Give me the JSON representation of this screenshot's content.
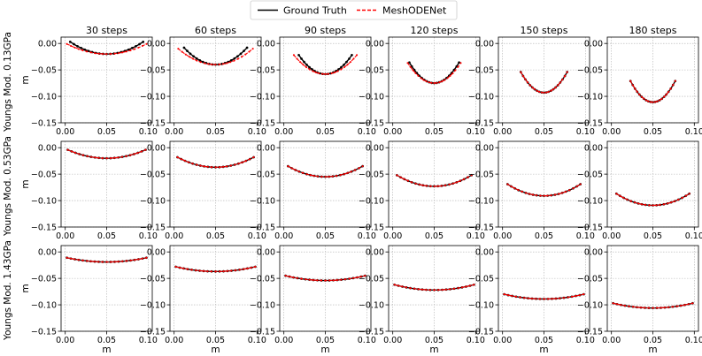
{
  "legend": {
    "items": [
      {
        "label": "Ground Truth",
        "color": "#000000",
        "dash": "solid"
      },
      {
        "label": "MeshODENet",
        "color": "#ff0000",
        "dash": "dashed"
      }
    ],
    "position": "top-center"
  },
  "chart_data": {
    "type": "line",
    "layout": "3x6 small multiples",
    "columns": [
      "30 steps",
      "60 steps",
      "90 steps",
      "120 steps",
      "150 steps",
      "180 steps"
    ],
    "rows": [
      "Youngs Mod. 0.13GPa",
      "Youngs Mod. 0.53GPa",
      "Youngs Mod. 1.43GPa"
    ],
    "xlabel": "m",
    "ylabel": "m",
    "xlim": [
      -0.005,
      0.105
    ],
    "ylim": [
      -0.15,
      0.012
    ],
    "xticks": [
      0.0,
      0.05,
      0.1
    ],
    "xtick_labels": [
      "0.00",
      "0.05",
      "0.10"
    ],
    "yticks": [
      0.0,
      -0.05,
      -0.1,
      -0.15
    ],
    "ytick_labels": [
      "0.00",
      "−0.05",
      "−0.10",
      "−0.15"
    ],
    "grid": "dotted",
    "points_per_curve": 21,
    "panels": [
      {
        "row": 0,
        "col": 0,
        "gt": {
          "x_start": 0.006,
          "x_end": 0.094,
          "y_end": 0.003,
          "y_min": -0.02
        },
        "pred": {
          "x_start": 0.002,
          "x_end": 0.098,
          "y_end": -0.001,
          "y_min": -0.02
        }
      },
      {
        "row": 0,
        "col": 1,
        "gt": {
          "x_start": 0.012,
          "x_end": 0.088,
          "y_end": -0.008,
          "y_min": -0.04
        },
        "pred": {
          "x_start": 0.005,
          "x_end": 0.095,
          "y_end": -0.01,
          "y_min": -0.04
        }
      },
      {
        "row": 0,
        "col": 2,
        "gt": {
          "x_start": 0.018,
          "x_end": 0.082,
          "y_end": -0.022,
          "y_min": -0.058
        },
        "pred": {
          "x_start": 0.012,
          "x_end": 0.088,
          "y_end": -0.022,
          "y_min": -0.058
        }
      },
      {
        "row": 0,
        "col": 3,
        "gt": {
          "x_start": 0.02,
          "x_end": 0.08,
          "y_end": -0.036,
          "y_min": -0.075
        },
        "pred": {
          "x_start": 0.018,
          "x_end": 0.082,
          "y_end": -0.037,
          "y_min": -0.075
        }
      },
      {
        "row": 0,
        "col": 4,
        "gt": {
          "x_start": 0.022,
          "x_end": 0.078,
          "y_end": -0.054,
          "y_min": -0.093
        },
        "pred": {
          "x_start": 0.022,
          "x_end": 0.078,
          "y_end": -0.054,
          "y_min": -0.093
        }
      },
      {
        "row": 0,
        "col": 5,
        "gt": {
          "x_start": 0.023,
          "x_end": 0.077,
          "y_end": -0.071,
          "y_min": -0.111
        },
        "pred": {
          "x_start": 0.023,
          "x_end": 0.077,
          "y_end": -0.071,
          "y_min": -0.111
        }
      },
      {
        "row": 1,
        "col": 0,
        "gt": {
          "x_start": 0.003,
          "x_end": 0.097,
          "y_end": -0.004,
          "y_min": -0.02
        },
        "pred": {
          "x_start": 0.003,
          "x_end": 0.097,
          "y_end": -0.004,
          "y_min": -0.02
        }
      },
      {
        "row": 1,
        "col": 1,
        "gt": {
          "x_start": 0.004,
          "x_end": 0.096,
          "y_end": -0.018,
          "y_min": -0.037
        },
        "pred": {
          "x_start": 0.004,
          "x_end": 0.096,
          "y_end": -0.018,
          "y_min": -0.037
        }
      },
      {
        "row": 1,
        "col": 2,
        "gt": {
          "x_start": 0.005,
          "x_end": 0.095,
          "y_end": -0.035,
          "y_min": -0.055
        },
        "pred": {
          "x_start": 0.005,
          "x_end": 0.095,
          "y_end": -0.035,
          "y_min": -0.055
        }
      },
      {
        "row": 1,
        "col": 3,
        "gt": {
          "x_start": 0.005,
          "x_end": 0.095,
          "y_end": -0.052,
          "y_min": -0.073
        },
        "pred": {
          "x_start": 0.005,
          "x_end": 0.095,
          "y_end": -0.052,
          "y_min": -0.073
        }
      },
      {
        "row": 1,
        "col": 4,
        "gt": {
          "x_start": 0.006,
          "x_end": 0.094,
          "y_end": -0.069,
          "y_min": -0.091
        },
        "pred": {
          "x_start": 0.006,
          "x_end": 0.094,
          "y_end": -0.069,
          "y_min": -0.091
        }
      },
      {
        "row": 1,
        "col": 5,
        "gt": {
          "x_start": 0.006,
          "x_end": 0.094,
          "y_end": -0.087,
          "y_min": -0.109
        },
        "pred": {
          "x_start": 0.006,
          "x_end": 0.094,
          "y_end": -0.087,
          "y_min": -0.109
        }
      },
      {
        "row": 2,
        "col": 0,
        "gt": {
          "x_start": 0.002,
          "x_end": 0.098,
          "y_end": -0.011,
          "y_min": -0.019
        },
        "pred": {
          "x_start": 0.002,
          "x_end": 0.098,
          "y_end": -0.011,
          "y_min": -0.019
        }
      },
      {
        "row": 2,
        "col": 1,
        "gt": {
          "x_start": 0.002,
          "x_end": 0.098,
          "y_end": -0.028,
          "y_min": -0.037
        },
        "pred": {
          "x_start": 0.002,
          "x_end": 0.098,
          "y_end": -0.028,
          "y_min": -0.037
        }
      },
      {
        "row": 2,
        "col": 2,
        "gt": {
          "x_start": 0.002,
          "x_end": 0.098,
          "y_end": -0.045,
          "y_min": -0.054
        },
        "pred": {
          "x_start": 0.002,
          "x_end": 0.098,
          "y_end": -0.045,
          "y_min": -0.054
        }
      },
      {
        "row": 2,
        "col": 3,
        "gt": {
          "x_start": 0.002,
          "x_end": 0.098,
          "y_end": -0.062,
          "y_min": -0.072
        },
        "pred": {
          "x_start": 0.002,
          "x_end": 0.098,
          "y_end": -0.062,
          "y_min": -0.072
        }
      },
      {
        "row": 2,
        "col": 4,
        "gt": {
          "x_start": 0.002,
          "x_end": 0.098,
          "y_end": -0.08,
          "y_min": -0.089
        },
        "pred": {
          "x_start": 0.002,
          "x_end": 0.098,
          "y_end": -0.08,
          "y_min": -0.089
        }
      },
      {
        "row": 2,
        "col": 5,
        "gt": {
          "x_start": 0.002,
          "x_end": 0.098,
          "y_end": -0.097,
          "y_min": -0.106
        },
        "pred": {
          "x_start": 0.002,
          "x_end": 0.098,
          "y_end": -0.097,
          "y_min": -0.106
        }
      }
    ]
  }
}
